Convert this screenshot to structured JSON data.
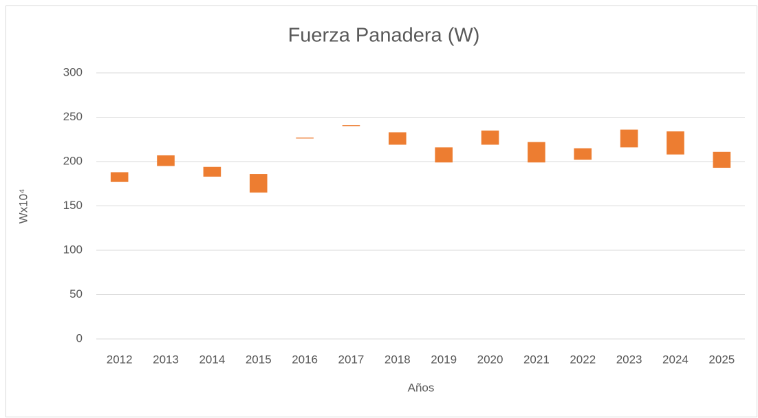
{
  "chart_data": {
    "type": "floating_bar",
    "title": "Fuerza Panadera (W)",
    "x_label": "Años",
    "y_label": "Wx10⁴",
    "categories": [
      "2012",
      "2013",
      "2014",
      "2015",
      "2016",
      "2017",
      "2018",
      "2019",
      "2020",
      "2021",
      "2022",
      "2023",
      "2024",
      "2025"
    ],
    "low": [
      177,
      195,
      183,
      165,
      226,
      240,
      219,
      199,
      219,
      199,
      202,
      216,
      208,
      193
    ],
    "high": [
      188,
      207,
      194,
      186,
      227,
      241,
      233,
      216,
      235,
      222,
      215,
      236,
      234,
      211
    ],
    "color": "#ed7d31",
    "ylim": [
      0,
      300
    ],
    "yticks": [
      0,
      50,
      100,
      150,
      200,
      250,
      300
    ],
    "grid": true
  }
}
